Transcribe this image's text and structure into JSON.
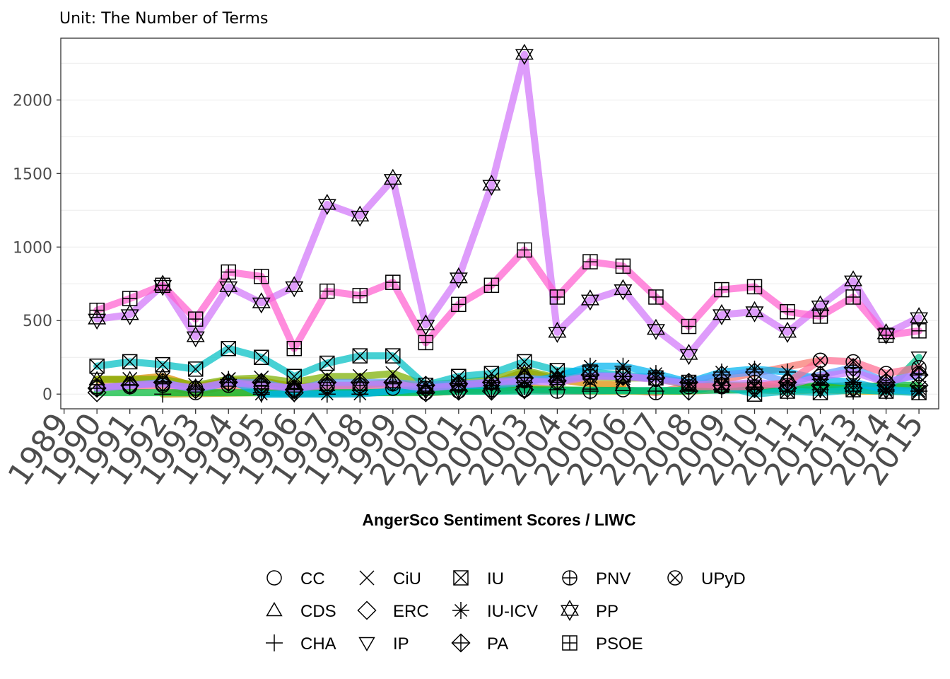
{
  "chart_data": {
    "type": "line",
    "subtitle": "Unit: The Number of Terms",
    "xlabel": "AngerSco Sentiment Scores / LIWC",
    "ylabel": "",
    "x_ticks": [
      "1989",
      "1990",
      "1991",
      "1992",
      "1993",
      "1994",
      "1995",
      "1996",
      "1997",
      "1998",
      "1999",
      "2000",
      "2001",
      "2002",
      "2003",
      "2004",
      "2005",
      "2006",
      "2007",
      "2008",
      "2009",
      "2010",
      "2011",
      "2012",
      "2013",
      "2014",
      "2015"
    ],
    "y_ticks": [
      0,
      500,
      1000,
      1500,
      2000
    ],
    "xlim": [
      1988.9,
      2015.6
    ],
    "ylim": [
      -100,
      2420
    ],
    "grid": true,
    "legend_position": "bottom",
    "series": [
      {
        "name": "CC",
        "shape": "circle",
        "color": "#F8766D",
        "points": [
          [
            1990,
            50
          ],
          [
            1991,
            50
          ],
          [
            1992,
            60
          ],
          [
            1993,
            10
          ],
          [
            1994,
            60
          ],
          [
            1995,
            40
          ],
          [
            1996,
            30
          ],
          [
            1997,
            50
          ],
          [
            1998,
            40
          ],
          [
            1999,
            40
          ],
          [
            2000,
            10
          ],
          [
            2001,
            20
          ],
          [
            2002,
            30
          ],
          [
            2003,
            30
          ],
          [
            2004,
            20
          ],
          [
            2005,
            20
          ],
          [
            2006,
            30
          ],
          [
            2007,
            10
          ],
          [
            2012,
            230
          ]
        ]
      },
      {
        "name": "CDS",
        "shape": "triangle-up",
        "color": "#DE8C00",
        "points": [
          [
            1990,
            100
          ],
          [
            1991,
            100
          ],
          [
            1992,
            120
          ],
          [
            1993,
            50
          ],
          [
            1994,
            90
          ],
          [
            1995,
            90
          ],
          [
            1996,
            50
          ],
          [
            1997,
            60
          ],
          [
            1998,
            60
          ],
          [
            1999,
            80
          ],
          [
            2000,
            40
          ],
          [
            2001,
            60
          ],
          [
            2002,
            70
          ],
          [
            2003,
            150
          ],
          [
            2004,
            100
          ],
          [
            2005,
            70
          ],
          [
            2006,
            60
          ]
        ]
      },
      {
        "name": "CHA",
        "shape": "plus",
        "color": "#B79F00",
        "points": [
          [
            1992,
            0
          ],
          [
            1995,
            10
          ],
          [
            1997,
            0
          ],
          [
            2000,
            20
          ],
          [
            2001,
            30
          ],
          [
            2002,
            40
          ],
          [
            2003,
            50
          ],
          [
            2004,
            30
          ],
          [
            2005,
            20
          ],
          [
            2007,
            20
          ],
          [
            2008,
            20
          ],
          [
            2009,
            30
          ],
          [
            2010,
            30
          ],
          [
            2011,
            20
          ],
          [
            2012,
            30
          ],
          [
            2013,
            20
          ],
          [
            2014,
            20
          ],
          [
            2015,
            20
          ]
        ]
      },
      {
        "name": "CiU",
        "shape": "x",
        "color": "#7CAE00",
        "points": [
          [
            1990,
            100
          ],
          [
            1991,
            100
          ],
          [
            1992,
            100
          ],
          [
            1993,
            60
          ],
          [
            1994,
            100
          ],
          [
            1995,
            110
          ],
          [
            1996,
            80
          ],
          [
            1997,
            120
          ],
          [
            1998,
            120
          ],
          [
            1999,
            140
          ],
          [
            2000,
            60
          ],
          [
            2001,
            80
          ],
          [
            2002,
            100
          ],
          [
            2003,
            160
          ],
          [
            2004,
            110
          ],
          [
            2005,
            120
          ],
          [
            2006,
            110
          ],
          [
            2007,
            110
          ],
          [
            2008,
            60
          ],
          [
            2009,
            60
          ],
          [
            2010,
            60
          ],
          [
            2011,
            40
          ],
          [
            2012,
            50
          ],
          [
            2013,
            60
          ],
          [
            2014,
            50
          ],
          [
            2015,
            40
          ]
        ]
      },
      {
        "name": "ERC",
        "shape": "diamond",
        "color": "#00BA38",
        "points": [
          [
            1990,
            10
          ],
          [
            1996,
            10
          ],
          [
            2000,
            10
          ],
          [
            2001,
            20
          ],
          [
            2002,
            20
          ],
          [
            2003,
            30
          ],
          [
            2008,
            20
          ],
          [
            2009,
            60
          ],
          [
            2010,
            40
          ],
          [
            2011,
            40
          ],
          [
            2012,
            60
          ],
          [
            2013,
            40
          ],
          [
            2014,
            60
          ],
          [
            2015,
            60
          ]
        ]
      },
      {
        "name": "IP",
        "shape": "triangle-down",
        "color": "#00C08B",
        "points": [
          [
            1995,
            0
          ],
          [
            1996,
            0
          ],
          [
            2000,
            20
          ],
          [
            2001,
            20
          ],
          [
            2002,
            20
          ],
          [
            2003,
            20
          ],
          [
            2012,
            30
          ],
          [
            2013,
            30
          ],
          [
            2014,
            20
          ],
          [
            2015,
            250
          ]
        ]
      },
      {
        "name": "IU",
        "shape": "square-x",
        "color": "#00BFC4",
        "points": [
          [
            1990,
            190
          ],
          [
            1991,
            220
          ],
          [
            1992,
            200
          ],
          [
            1993,
            170
          ],
          [
            1994,
            310
          ],
          [
            1995,
            250
          ],
          [
            1996,
            120
          ],
          [
            1997,
            210
          ],
          [
            1998,
            260
          ],
          [
            1999,
            260
          ],
          [
            2000,
            60
          ],
          [
            2001,
            120
          ],
          [
            2002,
            140
          ],
          [
            2003,
            220
          ],
          [
            2004,
            160
          ],
          [
            2005,
            150
          ],
          [
            2006,
            130
          ],
          [
            2007,
            110
          ],
          [
            2008,
            80
          ],
          [
            2009,
            60
          ],
          [
            2010,
            0
          ],
          [
            2011,
            20
          ],
          [
            2012,
            10
          ],
          [
            2013,
            30
          ],
          [
            2014,
            20
          ],
          [
            2015,
            10
          ]
        ]
      },
      {
        "name": "IU-ICV",
        "shape": "asterisk",
        "color": "#00B4F0",
        "points": [
          [
            1994,
            100
          ],
          [
            1995,
            0
          ],
          [
            1997,
            0
          ],
          [
            1998,
            0
          ],
          [
            2001,
            60
          ],
          [
            2002,
            60
          ],
          [
            2003,
            80
          ],
          [
            2004,
            120
          ],
          [
            2005,
            190
          ],
          [
            2006,
            190
          ],
          [
            2007,
            140
          ],
          [
            2008,
            80
          ],
          [
            2009,
            150
          ],
          [
            2010,
            170
          ],
          [
            2011,
            150
          ],
          [
            2012,
            100
          ],
          [
            2013,
            80
          ],
          [
            2014,
            30
          ],
          [
            2015,
            20
          ]
        ]
      },
      {
        "name": "PA",
        "shape": "diamond-plus",
        "color": "#619CFF",
        "points": [
          [
            1990,
            40
          ],
          [
            1991,
            60
          ],
          [
            1992,
            80
          ],
          [
            1993,
            30
          ],
          [
            1994,
            80
          ],
          [
            1995,
            80
          ],
          [
            1996,
            30
          ],
          [
            1997,
            80
          ],
          [
            1998,
            80
          ],
          [
            1999,
            80
          ],
          [
            2000,
            60
          ],
          [
            2001,
            70
          ],
          [
            2002,
            80
          ],
          [
            2003,
            110
          ],
          [
            2004,
            90
          ],
          [
            2005,
            130
          ],
          [
            2006,
            120
          ],
          [
            2007,
            110
          ],
          [
            2008,
            80
          ],
          [
            2009,
            130
          ],
          [
            2010,
            150
          ],
          [
            2011,
            80
          ],
          [
            2012,
            130
          ],
          [
            2013,
            180
          ],
          [
            2014,
            80
          ],
          [
            2015,
            130
          ]
        ]
      },
      {
        "name": "PNV",
        "shape": "circle-plus",
        "color": "#C77CFF",
        "points": [
          [
            1990,
            40
          ],
          [
            1991,
            60
          ],
          [
            1992,
            70
          ],
          [
            1993,
            40
          ],
          [
            1994,
            80
          ],
          [
            1995,
            60
          ],
          [
            1996,
            40
          ],
          [
            1997,
            60
          ],
          [
            1998,
            60
          ],
          [
            1999,
            70
          ],
          [
            2000,
            40
          ],
          [
            2001,
            60
          ],
          [
            2002,
            80
          ],
          [
            2003,
            90
          ],
          [
            2004,
            80
          ],
          [
            2005,
            120
          ],
          [
            2006,
            120
          ],
          [
            2007,
            100
          ],
          [
            2008,
            70
          ],
          [
            2009,
            60
          ],
          [
            2010,
            80
          ],
          [
            2011,
            60
          ],
          [
            2012,
            120
          ],
          [
            2013,
            150
          ],
          [
            2014,
            80
          ],
          [
            2015,
            140
          ]
        ]
      },
      {
        "name": "PP",
        "shape": "star-of-david",
        "color": "#D176FA",
        "points": [
          [
            1990,
            510
          ],
          [
            1991,
            540
          ],
          [
            1992,
            740
          ],
          [
            1993,
            390
          ],
          [
            1994,
            730
          ],
          [
            1995,
            620
          ],
          [
            1996,
            730
          ],
          [
            1997,
            1290
          ],
          [
            1998,
            1210
          ],
          [
            1999,
            1460
          ],
          [
            2000,
            470
          ],
          [
            2001,
            790
          ],
          [
            2002,
            1420
          ],
          [
            2003,
            2310
          ],
          [
            2004,
            420
          ],
          [
            2005,
            640
          ],
          [
            2006,
            710
          ],
          [
            2007,
            440
          ],
          [
            2008,
            270
          ],
          [
            2009,
            540
          ],
          [
            2010,
            560
          ],
          [
            2011,
            420
          ],
          [
            2012,
            600
          ],
          [
            2013,
            770
          ],
          [
            2014,
            410
          ],
          [
            2015,
            520
          ]
        ]
      },
      {
        "name": "PSOE",
        "shape": "square-plus",
        "color": "#FF5FD0",
        "points": [
          [
            1990,
            570
          ],
          [
            1991,
            650
          ],
          [
            1992,
            740
          ],
          [
            1993,
            510
          ],
          [
            1994,
            830
          ],
          [
            1995,
            800
          ],
          [
            1996,
            310
          ],
          [
            1997,
            700
          ],
          [
            1998,
            670
          ],
          [
            1999,
            760
          ],
          [
            2000,
            350
          ],
          [
            2001,
            610
          ],
          [
            2002,
            740
          ],
          [
            2003,
            980
          ],
          [
            2004,
            660
          ],
          [
            2005,
            900
          ],
          [
            2006,
            870
          ],
          [
            2007,
            660
          ],
          [
            2008,
            460
          ],
          [
            2009,
            710
          ],
          [
            2010,
            730
          ],
          [
            2011,
            560
          ],
          [
            2012,
            530
          ],
          [
            2013,
            660
          ],
          [
            2014,
            400
          ],
          [
            2015,
            430
          ]
        ]
      },
      {
        "name": "UPyD",
        "shape": "circle-x",
        "color": "#FF6C91",
        "points": [
          [
            2008,
            50
          ],
          [
            2009,
            50
          ],
          [
            2010,
            50
          ],
          [
            2011,
            80
          ],
          [
            2012,
            230
          ],
          [
            2013,
            220
          ],
          [
            2014,
            140
          ],
          [
            2015,
            180
          ]
        ]
      }
    ]
  }
}
